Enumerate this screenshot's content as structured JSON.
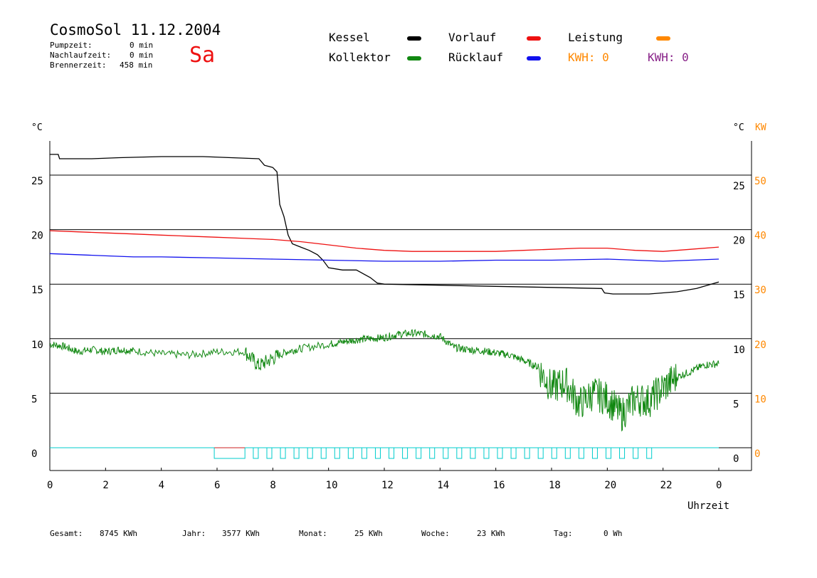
{
  "header": {
    "title": "CosmoSol 11.12.2004",
    "day": "Sa",
    "stats": [
      {
        "label": "Pumpzeit:",
        "value": "0 min"
      },
      {
        "label": "Nachlaufzeit:",
        "value": "0 min"
      },
      {
        "label": "Brennerzeit:",
        "value": "458 min"
      }
    ]
  },
  "legend": {
    "kessel": {
      "label": "Kessel",
      "color": "#000000"
    },
    "kollektor": {
      "label": "Kollektor",
      "color": "#118811"
    },
    "vorlauf": {
      "label": "Vorlauf",
      "color": "#ee1111"
    },
    "ruecklauf": {
      "label": "Rücklauf",
      "color": "#1111ee"
    },
    "leistung": {
      "label": "Leistung",
      "color": "#ff8800"
    },
    "kwh1": {
      "label": "KWH: 0",
      "color": "#ff8800"
    },
    "kwh2": {
      "label": "KWH: 0",
      "color": "#882288"
    }
  },
  "footer": [
    {
      "label": "Gesamt:",
      "value": "8745 KWh"
    },
    {
      "label": "Jahr:",
      "value": "3577 KWh"
    },
    {
      "label": "Monat:",
      "value": "25 KWh"
    },
    {
      "label": "Woche:",
      "value": "23 KWh"
    },
    {
      "label": "Tag:",
      "value": "0 Wh"
    }
  ],
  "chart_data": {
    "type": "line",
    "x_label": "Uhrzeit",
    "x_unit": "h",
    "xlim": [
      0,
      24
    ],
    "x_ticks": [
      "0",
      "2",
      "4",
      "6",
      "8",
      "10",
      "12",
      "14",
      "16",
      "18",
      "20",
      "22",
      "0"
    ],
    "y_left_unit": "°C",
    "y_right_unit": "°C",
    "y2_unit": "KW",
    "ylim": [
      -2,
      28
    ],
    "y_ticks": [
      0,
      5,
      10,
      15,
      20,
      25
    ],
    "y2_ticks": [
      0,
      10,
      20,
      30,
      40,
      50
    ],
    "grid": true,
    "series": [
      {
        "name": "Kessel",
        "color": "#000000",
        "x": [
          0,
          0.3,
          0.35,
          1.5,
          2.5,
          4.0,
          5.5,
          6.5,
          7.5,
          7.7,
          8.0,
          8.15,
          8.25,
          8.4,
          8.55,
          8.7,
          9.0,
          9.3,
          9.6,
          9.8,
          10.0,
          10.5,
          11.0,
          11.5,
          11.75,
          12.0,
          14.0,
          16.0,
          18.0,
          19.8,
          19.9,
          20.2,
          21.5,
          22.5,
          23.2,
          24.0
        ],
        "y": [
          26.9,
          26.9,
          26.5,
          26.5,
          26.6,
          26.7,
          26.7,
          26.6,
          26.5,
          25.9,
          25.7,
          25.3,
          22.3,
          21.2,
          19.5,
          18.7,
          18.4,
          18.1,
          17.7,
          17.2,
          16.5,
          16.3,
          16.3,
          15.6,
          15.1,
          15.0,
          14.9,
          14.8,
          14.7,
          14.6,
          14.2,
          14.1,
          14.1,
          14.3,
          14.6,
          15.2
        ]
      },
      {
        "name": "Vorlauf",
        "color": "#ee1111",
        "x": [
          0,
          1,
          2,
          3,
          4,
          5,
          6,
          7,
          8,
          9,
          10,
          11,
          12,
          13,
          14,
          15,
          16,
          17,
          18,
          19,
          20,
          21,
          22,
          23,
          24
        ],
        "y": [
          19.9,
          19.8,
          19.7,
          19.6,
          19.5,
          19.4,
          19.3,
          19.2,
          19.1,
          18.9,
          18.6,
          18.3,
          18.1,
          18.0,
          18.0,
          18.0,
          18.0,
          18.1,
          18.2,
          18.3,
          18.3,
          18.1,
          18.0,
          18.2,
          18.4
        ]
      },
      {
        "name": "Rücklauf",
        "color": "#1111ee",
        "x": [
          0,
          1,
          2,
          3,
          4,
          6,
          8,
          10,
          12,
          14,
          16,
          18,
          20,
          22,
          24
        ],
        "y": [
          17.8,
          17.7,
          17.6,
          17.5,
          17.5,
          17.4,
          17.3,
          17.2,
          17.1,
          17.1,
          17.2,
          17.2,
          17.3,
          17.1,
          17.3
        ]
      },
      {
        "name": "Kollektor",
        "color": "#118811",
        "x": [
          0,
          0.5,
          1,
          1.5,
          2,
          2.5,
          3,
          4,
          5,
          6,
          7,
          7.5,
          8,
          8.5,
          9,
          10,
          10.5,
          11,
          11.5,
          12,
          12.5,
          13,
          13.5,
          14,
          14.5,
          15,
          15.5,
          16,
          16.5,
          17,
          17.5,
          18,
          18.5,
          19,
          19.5,
          20,
          20.5,
          21,
          21.5,
          22,
          22.5,
          23,
          23.5,
          24
        ],
        "y": [
          9.5,
          9.3,
          8.8,
          9.0,
          8.8,
          9.0,
          8.9,
          8.6,
          8.5,
          8.8,
          8.8,
          7.5,
          8.2,
          8.8,
          9.1,
          9.5,
          9.7,
          9.9,
          10.0,
          10.1,
          10.4,
          10.5,
          10.4,
          10.2,
          9.2,
          9.0,
          8.9,
          8.7,
          8.5,
          8.0,
          7.4,
          5.5,
          6.0,
          4.0,
          5.0,
          4.5,
          3.0,
          4.5,
          4.3,
          5.5,
          6.5,
          7.0,
          7.6,
          7.7
        ]
      }
    ],
    "events": [
      {
        "x_start": 5.9,
        "x_end": 7.0,
        "color": "#00cccc",
        "type": "pump-run"
      },
      {
        "x_start": 7.3,
        "x_end": 21.9,
        "color": "#00cccc",
        "type": "pump-pulses"
      }
    ]
  }
}
